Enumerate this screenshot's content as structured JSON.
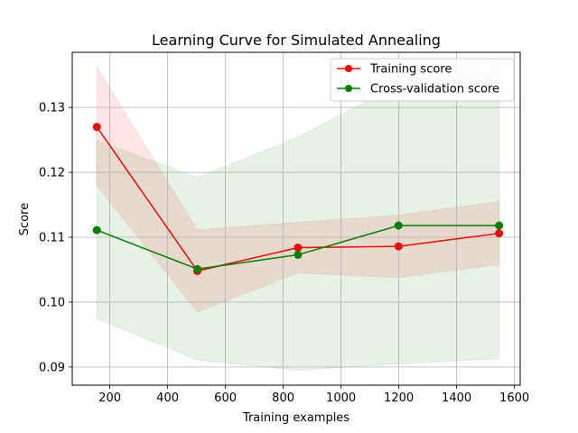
{
  "chart_data": {
    "type": "line",
    "title": "Learning Curve for Simulated Annealing",
    "xlabel": "Training examples",
    "ylabel": "Score",
    "xlim": [
      70,
      1620
    ],
    "ylim": [
      0.0872,
      0.1385
    ],
    "xticks": [
      200,
      400,
      600,
      800,
      1000,
      1200,
      1400,
      1600
    ],
    "yticks": [
      0.09,
      0.1,
      0.11,
      0.12,
      0.13
    ],
    "ytick_labels": [
      "0.09",
      "0.10",
      "0.11",
      "0.12",
      "0.13"
    ],
    "grid": true,
    "legend_position": "top-right",
    "x": [
      155,
      503,
      851,
      1199,
      1547
    ],
    "series": [
      {
        "name": "Training score",
        "color": "#ff0000",
        "band_color": "#ff0000",
        "values": [
          0.127,
          0.1048,
          0.1084,
          0.1086,
          0.1106
        ],
        "band_lower": [
          0.118,
          0.0985,
          0.1045,
          0.1038,
          0.1058
        ],
        "band_upper": [
          0.1362,
          0.1111,
          0.1123,
          0.1134,
          0.1155
        ]
      },
      {
        "name": "Cross-validation score",
        "color": "#008000",
        "band_color": "#008000",
        "values": [
          0.1111,
          0.1051,
          0.1073,
          0.1118,
          0.1118
        ],
        "band_lower": [
          0.0975,
          0.0911,
          0.0895,
          0.0905,
          0.0913
        ],
        "band_upper": [
          0.1249,
          0.1192,
          0.1254,
          0.1336,
          0.1366
        ]
      }
    ]
  }
}
